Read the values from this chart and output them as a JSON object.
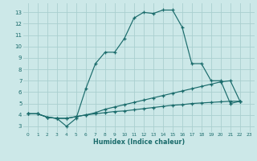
{
  "xlabel": "Humidex (Indice chaleur)",
  "bg_color": "#cce8e8",
  "grid_color": "#aacfcf",
  "line_color": "#1a6b6b",
  "series1_x": [
    0,
    1,
    2,
    3,
    4,
    5,
    6,
    7,
    8,
    9,
    10,
    11,
    12,
    13,
    14,
    15,
    16,
    17,
    18,
    19,
    20,
    21,
    22
  ],
  "series1_y": [
    4.1,
    4.1,
    3.8,
    3.7,
    3.0,
    3.7,
    6.3,
    8.5,
    9.5,
    9.5,
    10.7,
    12.5,
    13.0,
    12.9,
    13.2,
    13.2,
    11.7,
    8.5,
    8.5,
    7.0,
    7.0,
    5.0,
    5.2
  ],
  "series2_x": [
    0,
    1,
    2,
    3,
    4,
    5,
    6,
    7,
    8,
    9,
    10,
    11,
    12,
    13,
    14,
    15,
    16,
    17,
    18,
    19,
    20,
    21,
    22
  ],
  "series2_y": [
    4.1,
    4.1,
    3.8,
    3.7,
    3.7,
    3.85,
    4.0,
    4.2,
    4.5,
    4.7,
    4.9,
    5.1,
    5.3,
    5.5,
    5.7,
    5.9,
    6.1,
    6.3,
    6.5,
    6.7,
    6.9,
    7.0,
    5.2
  ],
  "series3_x": [
    0,
    1,
    2,
    3,
    4,
    5,
    6,
    7,
    8,
    9,
    10,
    11,
    12,
    13,
    14,
    15,
    16,
    17,
    18,
    19,
    20,
    21,
    22
  ],
  "series3_y": [
    4.1,
    4.1,
    3.8,
    3.7,
    3.7,
    3.85,
    4.0,
    4.1,
    4.2,
    4.3,
    4.35,
    4.45,
    4.55,
    4.65,
    4.75,
    4.85,
    4.9,
    5.0,
    5.05,
    5.1,
    5.15,
    5.2,
    5.2
  ],
  "xlim": [
    -0.5,
    23.5
  ],
  "ylim": [
    2.5,
    13.8
  ],
  "yticks": [
    3,
    4,
    5,
    6,
    7,
    8,
    9,
    10,
    11,
    12,
    13
  ],
  "xticks": [
    0,
    1,
    2,
    3,
    4,
    5,
    6,
    7,
    8,
    9,
    10,
    11,
    12,
    13,
    14,
    15,
    16,
    17,
    18,
    19,
    20,
    21,
    22,
    23
  ]
}
